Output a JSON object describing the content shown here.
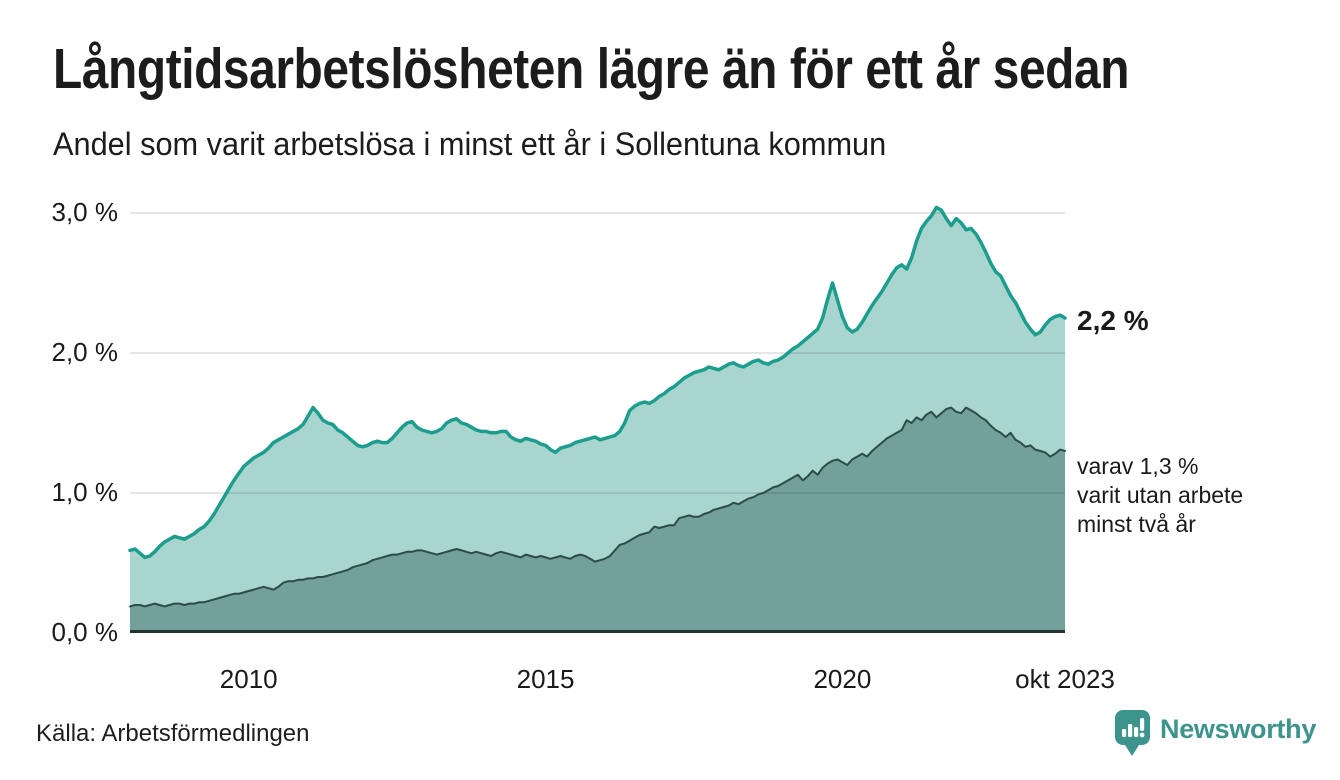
{
  "header": {
    "title": "Långtidsarbetslösheten lägre än för ett år sedan",
    "subtitle": "Andel som varit arbetslösa i minst ett år i Sollentuna kommun"
  },
  "chart_data": {
    "type": "area",
    "title": "Långtidsarbetslösheten lägre än för ett år sedan",
    "subtitle": "Andel som varit arbetslösa i minst ett år i Sollentuna kommun",
    "unit": "%",
    "frequency": "monthly",
    "x_start": "2008-01",
    "x_end": "2023-10",
    "ylim": [
      0,
      3.2
    ],
    "grid": "horizontal",
    "y_ticks": [
      {
        "label": "3,0 %",
        "value": 3.0
      },
      {
        "label": "2,0 %",
        "value": 2.0
      },
      {
        "label": "1,0 %",
        "value": 1.0
      },
      {
        "label": "0,0 %",
        "value": 0.0
      }
    ],
    "x_ticks": [
      {
        "label": "2010",
        "month_index": 24
      },
      {
        "label": "2015",
        "month_index": 84
      },
      {
        "label": "2020",
        "month_index": 144
      },
      {
        "label": "okt 2023",
        "month_index": 189
      }
    ],
    "series": [
      {
        "name": "Andel som varit arbetslösa i minst ett år",
        "line_color": "#1d9d8e",
        "fill_color": "#a8d5ce",
        "line_width": 3.5,
        "latest_value": 2.2,
        "values": [
          0.59,
          0.6,
          0.57,
          0.54,
          0.55,
          0.58,
          0.62,
          0.65,
          0.67,
          0.69,
          0.68,
          0.67,
          0.69,
          0.71,
          0.74,
          0.76,
          0.8,
          0.85,
          0.91,
          0.97,
          1.03,
          1.09,
          1.14,
          1.19,
          1.22,
          1.25,
          1.27,
          1.29,
          1.32,
          1.36,
          1.38,
          1.4,
          1.42,
          1.44,
          1.46,
          1.49,
          1.55,
          1.61,
          1.57,
          1.52,
          1.5,
          1.49,
          1.45,
          1.43,
          1.4,
          1.37,
          1.34,
          1.33,
          1.34,
          1.36,
          1.37,
          1.36,
          1.36,
          1.39,
          1.43,
          1.47,
          1.5,
          1.51,
          1.47,
          1.45,
          1.44,
          1.43,
          1.44,
          1.46,
          1.5,
          1.52,
          1.53,
          1.5,
          1.49,
          1.47,
          1.45,
          1.44,
          1.44,
          1.43,
          1.43,
          1.44,
          1.44,
          1.4,
          1.38,
          1.37,
          1.39,
          1.38,
          1.37,
          1.35,
          1.34,
          1.31,
          1.29,
          1.32,
          1.33,
          1.34,
          1.36,
          1.37,
          1.38,
          1.39,
          1.4,
          1.38,
          1.39,
          1.4,
          1.41,
          1.44,
          1.5,
          1.59,
          1.62,
          1.64,
          1.65,
          1.64,
          1.66,
          1.69,
          1.71,
          1.74,
          1.76,
          1.79,
          1.82,
          1.84,
          1.86,
          1.87,
          1.88,
          1.9,
          1.89,
          1.88,
          1.9,
          1.92,
          1.93,
          1.91,
          1.9,
          1.92,
          1.94,
          1.95,
          1.93,
          1.92,
          1.94,
          1.95,
          1.97,
          2.0,
          2.03,
          2.05,
          2.08,
          2.11,
          2.14,
          2.17,
          2.25,
          2.38,
          2.5,
          2.38,
          2.26,
          2.18,
          2.15,
          2.17,
          2.22,
          2.28,
          2.34,
          2.39,
          2.44,
          2.5,
          2.56,
          2.61,
          2.63,
          2.6,
          2.68,
          2.8,
          2.89,
          2.94,
          2.98,
          3.04,
          3.02,
          2.96,
          2.91,
          2.96,
          2.93,
          2.88,
          2.89,
          2.85,
          2.79,
          2.72,
          2.64,
          2.58,
          2.55,
          2.48,
          2.41,
          2.36,
          2.29,
          2.22,
          2.17,
          2.13,
          2.15,
          2.2,
          2.24,
          2.26,
          2.27,
          2.25
        ]
      },
      {
        "name": "Andel som varit utan arbete minst två år",
        "line_color": "#2d4b47",
        "fill_color": "#72a09b",
        "line_width": 2,
        "latest_value": 1.3,
        "values": [
          0.19,
          0.2,
          0.2,
          0.19,
          0.2,
          0.21,
          0.2,
          0.19,
          0.2,
          0.21,
          0.21,
          0.2,
          0.21,
          0.21,
          0.22,
          0.22,
          0.23,
          0.24,
          0.25,
          0.26,
          0.27,
          0.28,
          0.28,
          0.29,
          0.3,
          0.31,
          0.32,
          0.33,
          0.32,
          0.31,
          0.33,
          0.36,
          0.37,
          0.37,
          0.38,
          0.38,
          0.39,
          0.39,
          0.4,
          0.4,
          0.41,
          0.42,
          0.43,
          0.44,
          0.45,
          0.47,
          0.48,
          0.49,
          0.5,
          0.52,
          0.53,
          0.54,
          0.55,
          0.56,
          0.56,
          0.57,
          0.58,
          0.58,
          0.59,
          0.59,
          0.58,
          0.57,
          0.56,
          0.57,
          0.58,
          0.59,
          0.6,
          0.59,
          0.58,
          0.57,
          0.58,
          0.57,
          0.56,
          0.55,
          0.57,
          0.58,
          0.57,
          0.56,
          0.55,
          0.54,
          0.56,
          0.55,
          0.54,
          0.55,
          0.54,
          0.53,
          0.54,
          0.55,
          0.54,
          0.53,
          0.55,
          0.56,
          0.55,
          0.53,
          0.51,
          0.52,
          0.53,
          0.55,
          0.59,
          0.63,
          0.64,
          0.66,
          0.68,
          0.7,
          0.71,
          0.72,
          0.76,
          0.75,
          0.76,
          0.77,
          0.77,
          0.82,
          0.83,
          0.84,
          0.83,
          0.83,
          0.85,
          0.86,
          0.88,
          0.89,
          0.9,
          0.91,
          0.93,
          0.92,
          0.94,
          0.96,
          0.97,
          0.99,
          1.0,
          1.02,
          1.04,
          1.05,
          1.07,
          1.09,
          1.11,
          1.13,
          1.09,
          1.12,
          1.16,
          1.13,
          1.18,
          1.21,
          1.23,
          1.24,
          1.22,
          1.2,
          1.24,
          1.26,
          1.28,
          1.26,
          1.3,
          1.33,
          1.36,
          1.39,
          1.41,
          1.43,
          1.45,
          1.52,
          1.5,
          1.54,
          1.52,
          1.56,
          1.58,
          1.54,
          1.57,
          1.6,
          1.61,
          1.58,
          1.57,
          1.61,
          1.59,
          1.57,
          1.54,
          1.52,
          1.48,
          1.45,
          1.43,
          1.4,
          1.43,
          1.38,
          1.36,
          1.33,
          1.34,
          1.31,
          1.3,
          1.29,
          1.26,
          1.28,
          1.31,
          1.3
        ]
      }
    ],
    "annotations": {
      "latest": {
        "label": "2,2 %"
      },
      "secondary": {
        "lines": [
          "varav 1,3 %",
          "varit utan arbete",
          "minst två år"
        ]
      }
    }
  },
  "footer": {
    "source": "Källa: Arbetsförmedlingen",
    "brand": "Newsworthy"
  },
  "colors": {
    "background": "#ffffff",
    "text": "#1a1a1a",
    "gridline": "#e3e3e3",
    "zero_axis": "#233230",
    "series1_line": "#1d9d8e",
    "series1_fill": "#a8d5ce",
    "series2_line": "#2d4b47",
    "series2_fill": "#72a09b",
    "brand_teal": "#3d948c"
  }
}
